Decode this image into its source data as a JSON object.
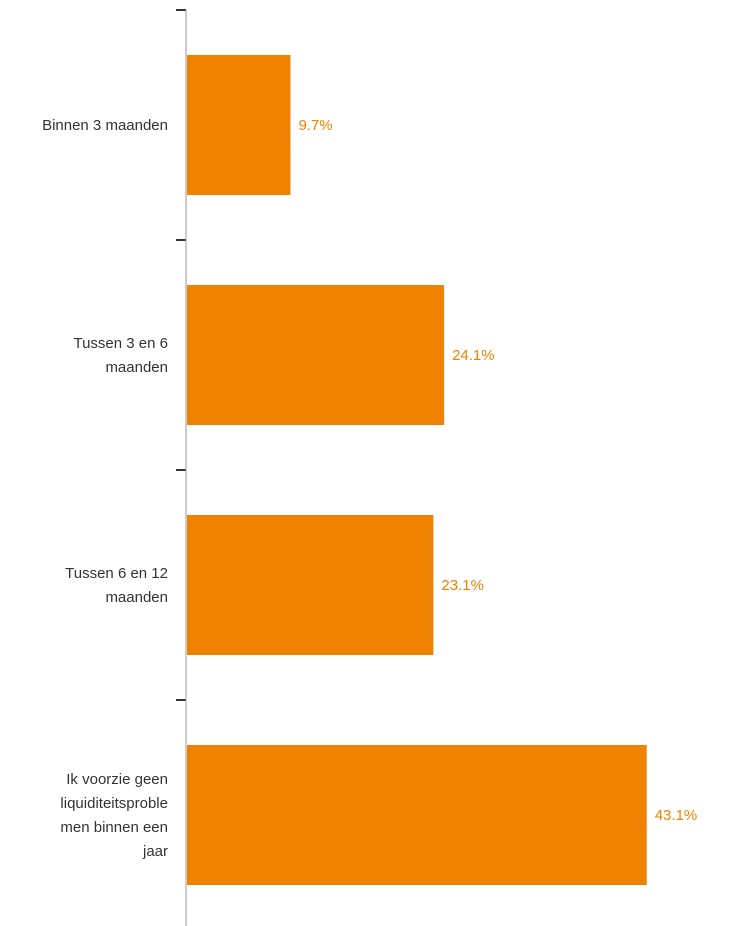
{
  "colors": {
    "bar": "#EF8200",
    "value_label": "#EF8200",
    "axis": "#999999",
    "tick": "#333333",
    "category_label": "#333333"
  },
  "chart_data": {
    "type": "bar",
    "orientation": "horizontal",
    "title": "",
    "xlabel": "",
    "ylabel": "",
    "grid": false,
    "legend": "none",
    "xlim": [
      0,
      45
    ],
    "categories": [
      "Binnen 3 maanden",
      "Tussen 3 en 6 maanden",
      "Tussen 6 en 12 maanden",
      "Ik voorzie geen liquiditeitsproblemen binnen een jaar"
    ],
    "category_label_lines": [
      [
        "Binnen 3 maanden"
      ],
      [
        "Tussen 3 en 6",
        "maanden"
      ],
      [
        "Tussen 6 en 12",
        "maanden"
      ],
      [
        "Ik voorzie geen",
        "liquiditeitsproble",
        "men binnen een",
        "jaar"
      ]
    ],
    "values": [
      9.7,
      24.1,
      23.1,
      43.1
    ],
    "value_labels": [
      "9.7%",
      "24.1%",
      "23.1%",
      "43.1%"
    ],
    "unit": "%"
  }
}
